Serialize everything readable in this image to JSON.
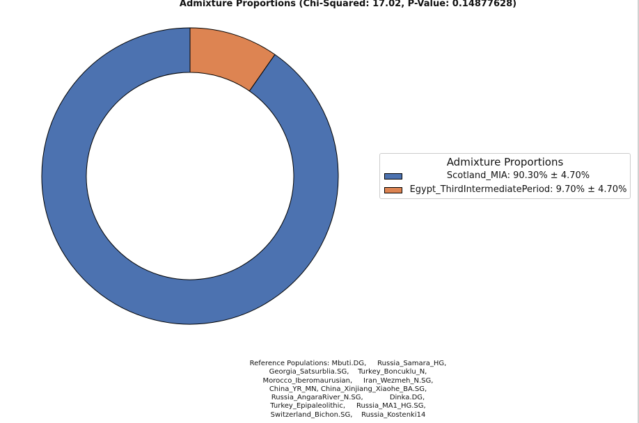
{
  "chart_data": {
    "type": "pie",
    "title": "Admixture Proportions (Chi-Squared: 17.02, P-Value: 0.14877628)",
    "slices": [
      {
        "label": "Scotland_MIA",
        "value": 90.3,
        "error": 4.7,
        "color": "#4c72b0"
      },
      {
        "label": "Egypt_ThirdIntermediatePeriod",
        "value": 9.7,
        "error": 4.7,
        "color": "#dd8452"
      }
    ],
    "donut": true,
    "start_angle_deg": 90,
    "direction": "counterclockwise",
    "legend": {
      "title": "Admixture Proportions",
      "placement": "center-right",
      "entries": [
        "Scotland_MIA: 90.30% ± 4.70%",
        "Egypt_ThirdIntermediatePeriod: 9.70% ± 4.70%"
      ]
    },
    "annotations": {
      "reference_populations": [
        "Reference Populations: Mbuti.DG,     Russia_Samara_HG,",
        "Georgia_Satsurblia.SG,    Turkey_Boncuklu_N,",
        "Morocco_Iberomaurusian,     Iran_Wezmeh_N.SG,",
        "China_YR_MN, China_Xinjiang_Xiaohe_BA.SG,",
        "Russia_AngaraRiver_N.SG,            Dinka.DG,",
        "Turkey_Epipaleolithic,     Russia_MA1_HG.SG,",
        "Switzerland_Bichon.SG,    Russia_Kostenki14"
      ]
    }
  }
}
